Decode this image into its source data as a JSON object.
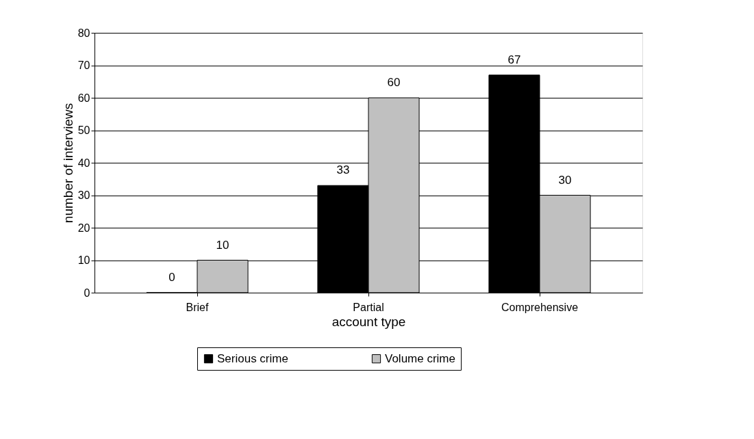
{
  "chart_data": {
    "type": "bar",
    "xlabel": "account type",
    "ylabel": "number of interviews",
    "categories": [
      "Brief",
      "Partial",
      "Comprehensive"
    ],
    "series": [
      {
        "name": "Serious crime",
        "color": "#000000",
        "values": [
          0,
          33,
          67
        ]
      },
      {
        "name": "Volume crime",
        "color": "#c0c0c0",
        "values": [
          10,
          60,
          30
        ]
      }
    ],
    "ylim": [
      0,
      80
    ],
    "yticks": [
      0,
      10,
      20,
      30,
      40,
      50,
      60,
      70,
      80
    ],
    "grid": "y",
    "legend": "bottom",
    "data_labels": true
  }
}
